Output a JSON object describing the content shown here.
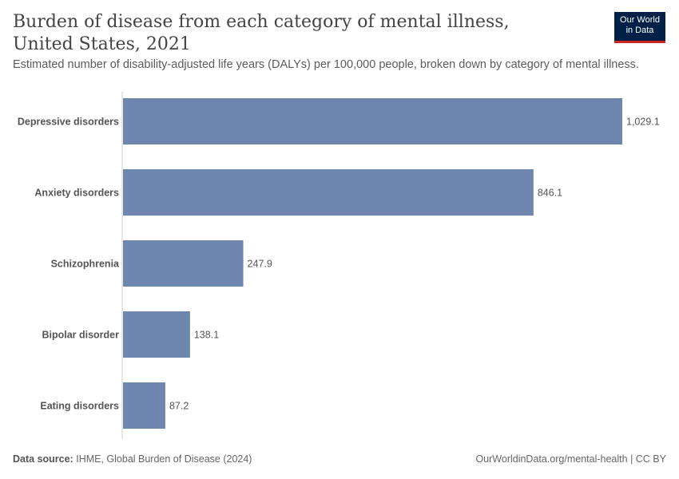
{
  "header": {
    "title": "Burden of disease from each category of mental illness, United States, 2021",
    "subtitle": "Estimated number of disability-adjusted life years (DALYs) per 100,000 people, broken down by category of mental illness.",
    "logo_line1": "Our World",
    "logo_line2": "in Data"
  },
  "footer": {
    "source_label": "Data source:",
    "source_text": "IHME, Global Burden of Disease (2024)",
    "credit": "OurWorldinData.org/mental-health | CC BY"
  },
  "colors": {
    "bar": "#6f87af",
    "logo_bg": "#002147",
    "logo_accent": "#ce261e"
  },
  "chart_data": {
    "type": "bar",
    "orientation": "horizontal",
    "categories": [
      "Depressive disorders",
      "Anxiety disorders",
      "Schizophrenia",
      "Bipolar disorder",
      "Eating disorders"
    ],
    "values": [
      1029.1,
      846.1,
      247.9,
      138.1,
      87.2
    ],
    "value_labels": [
      "1,029.1",
      "846.1",
      "247.9",
      "138.1",
      "87.2"
    ],
    "xlim": [
      0,
      1029.1
    ],
    "grid": false,
    "legend": false
  }
}
